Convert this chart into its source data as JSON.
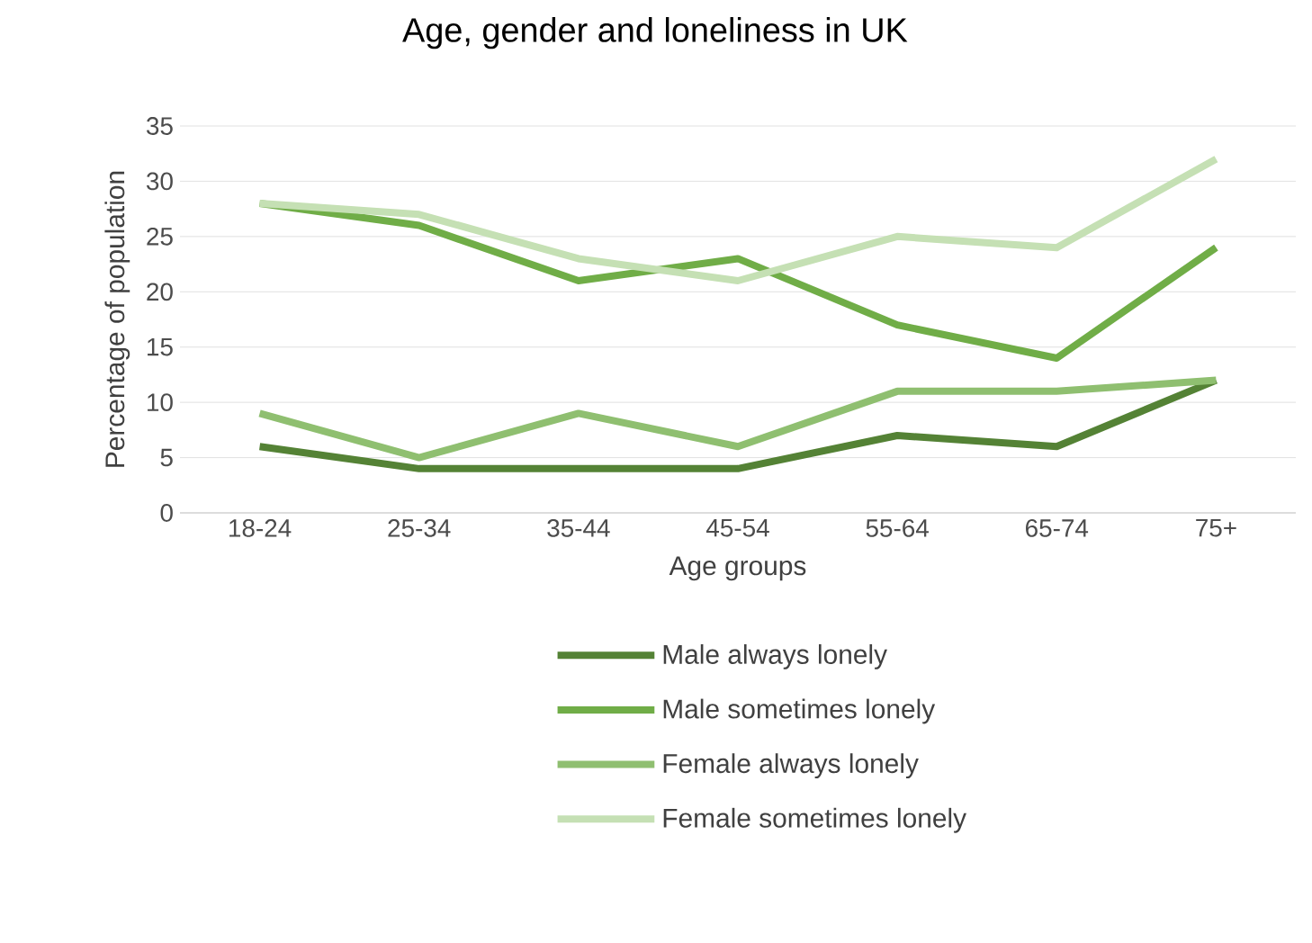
{
  "chart_data": {
    "type": "line",
    "title": "Age, gender and loneliness in UK",
    "xlabel": "Age groups",
    "ylabel": "Percentage of population",
    "categories": [
      "18-24",
      "25-34",
      "35-44",
      "45-54",
      "55-64",
      "65-74",
      "75+"
    ],
    "series": [
      {
        "name": "Male always lonely",
        "color": "#548235",
        "values": [
          6,
          4,
          4,
          4,
          7,
          6,
          12
        ]
      },
      {
        "name": "Male sometimes lonely",
        "color": "#70ad47",
        "values": [
          28,
          26,
          21,
          23,
          17,
          14,
          24
        ]
      },
      {
        "name": "Female always lonely",
        "color": "#8fbf70",
        "values": [
          9,
          5,
          9,
          6,
          11,
          11,
          12
        ]
      },
      {
        "name": "Female sometimes lonely",
        "color": "#c5e0b4",
        "values": [
          28,
          27,
          23,
          21,
          25,
          24,
          32
        ]
      }
    ],
    "ylim": [
      0,
      35
    ],
    "yticks": [
      0,
      5,
      10,
      15,
      20,
      25,
      30,
      35
    ],
    "grid": "y",
    "legend": "bottom",
    "marker": "none",
    "line_style": "solid"
  }
}
